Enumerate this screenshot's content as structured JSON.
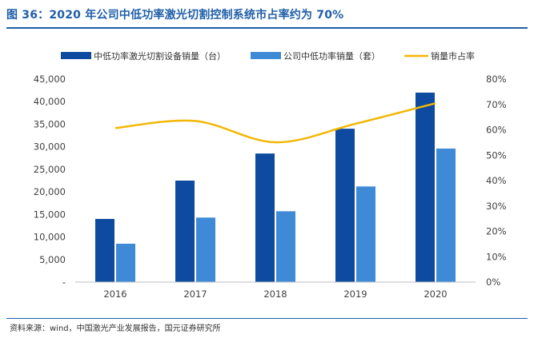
{
  "title": "图 36：2020 年公司中低功率激光切割控制系统市占率约为 70%",
  "source": "资料来源：wind，中国激光产业发展报告，国元证券研究所",
  "colors": {
    "bar1": "#0d4aa0",
    "bar2": "#3f8ad6",
    "line": "#f2b705",
    "title": "#1f5fa8"
  },
  "chart_data": {
    "type": "bar",
    "categories": [
      "2016",
      "2017",
      "2018",
      "2019",
      "2020"
    ],
    "series": [
      {
        "name": "中低功率激光切割设备销量（台）",
        "type": "bar",
        "axis": "left",
        "values": [
          14000,
          22500,
          28500,
          34000,
          42000
        ],
        "color": "#0d4aa0"
      },
      {
        "name": "公司中低功率销量（套）",
        "type": "bar",
        "axis": "left",
        "values": [
          8500,
          14300,
          15700,
          21200,
          29600
        ],
        "color": "#3f8ad6"
      },
      {
        "name": "销量市占率",
        "type": "line",
        "axis": "right",
        "values": [
          0.607,
          0.635,
          0.551,
          0.624,
          0.705
        ],
        "color": "#f2b705"
      }
    ],
    "y_left": {
      "ylim": [
        0,
        45000
      ],
      "ticks": [
        "-",
        "5,000",
        "10,000",
        "15,000",
        "20,000",
        "25,000",
        "30,000",
        "35,000",
        "40,000",
        "45,000"
      ]
    },
    "y_right": {
      "ylim": [
        0,
        0.8
      ],
      "ticks": [
        "0%",
        "10%",
        "20%",
        "30%",
        "40%",
        "50%",
        "60%",
        "70%",
        "80%"
      ]
    },
    "legend": "top",
    "grid": false
  }
}
